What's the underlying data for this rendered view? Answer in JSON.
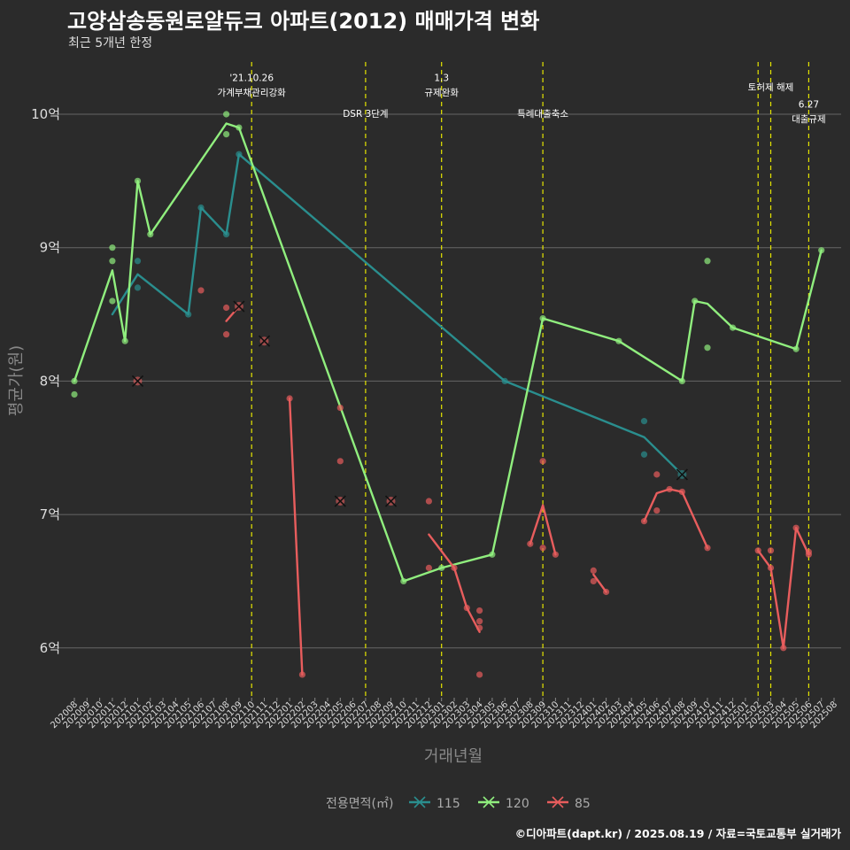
{
  "title": "고양삼송동원로얄듀크 아파트(2012) 매매가격 변화",
  "subtitle": "최근 5개년 한정",
  "caption": "©디아파트(dapt.kr) / 2025.08.19 / 자료=국토교통부 실거래가",
  "chart_data": {
    "type": "line",
    "title": "고양삼송동원로얄듀크 아파트(2012) 매매가격 변화",
    "subtitle": "최근 5개년 한정",
    "xlabel": "거래년월",
    "ylabel": "평균가(원)",
    "ylim": [
      5.7,
      10.45
    ],
    "yticks": [
      6,
      7,
      8,
      9,
      10
    ],
    "ytick_labels": [
      "6억",
      "7억",
      "8억",
      "9억",
      "10억"
    ],
    "x": [
      "202008",
      "202009",
      "202010",
      "202011",
      "202012",
      "202101",
      "202102",
      "202103",
      "202104",
      "202105",
      "202106",
      "202107",
      "202108",
      "202109",
      "202110",
      "202111",
      "202112",
      "202201",
      "202202",
      "202203",
      "202204",
      "202205",
      "202206",
      "202207",
      "202208",
      "202209",
      "202210",
      "202211",
      "202212",
      "202301",
      "202302",
      "202303",
      "202304",
      "202305",
      "202306",
      "202307",
      "202308",
      "202309",
      "202310",
      "202311",
      "202312",
      "202401",
      "202402",
      "202403",
      "202404",
      "202405",
      "202406",
      "202407",
      "202408",
      "202409",
      "202410",
      "202411",
      "202412",
      "202501",
      "202502",
      "202503",
      "202504",
      "202505",
      "202506",
      "202507",
      "202508"
    ],
    "legend_title": "전용면적(㎡)",
    "series": [
      {
        "name": "115",
        "color": "#2a8e8e",
        "line": [
          [
            3,
            8.5
          ],
          [
            5,
            8.8
          ],
          [
            9,
            8.5
          ],
          [
            10,
            9.3
          ],
          [
            12,
            9.1
          ],
          [
            13,
            9.7
          ],
          [
            34,
            8.0
          ],
          [
            45,
            7.58
          ],
          [
            48,
            7.3
          ]
        ],
        "points": [
          [
            5,
            8.9
          ],
          [
            5,
            8.7
          ],
          [
            9,
            8.5
          ],
          [
            10,
            9.3
          ],
          [
            12,
            9.1
          ],
          [
            13,
            9.7
          ],
          [
            34,
            8.0
          ],
          [
            45,
            7.7
          ],
          [
            45,
            7.45
          ]
        ],
        "crosses": [
          [
            48,
            7.3
          ]
        ]
      },
      {
        "name": "120",
        "color": "#90ee7e",
        "line": [
          [
            0,
            8.0
          ],
          [
            3,
            8.83
          ],
          [
            4,
            8.3
          ],
          [
            5,
            9.5
          ],
          [
            6,
            9.1
          ],
          [
            12,
            9.93
          ],
          [
            13,
            9.9
          ],
          [
            26,
            6.5
          ],
          [
            29,
            6.6
          ],
          [
            33,
            6.7
          ],
          [
            37,
            8.47
          ],
          [
            43,
            8.3
          ],
          [
            48,
            8.0
          ],
          [
            49,
            8.6
          ],
          [
            50,
            8.58
          ],
          [
            52,
            8.4
          ],
          [
            57,
            8.24
          ],
          [
            59,
            8.98
          ]
        ],
        "points": [
          [
            0,
            8.0
          ],
          [
            0,
            7.9
          ],
          [
            3,
            9.0
          ],
          [
            3,
            8.9
          ],
          [
            3,
            8.6
          ],
          [
            4,
            8.3
          ],
          [
            5,
            9.5
          ],
          [
            6,
            9.1
          ],
          [
            12,
            10.0
          ],
          [
            12,
            9.85
          ],
          [
            13,
            9.9
          ],
          [
            26,
            6.5
          ],
          [
            29,
            6.6
          ],
          [
            33,
            6.7
          ],
          [
            37,
            8.47
          ],
          [
            43,
            8.3
          ],
          [
            48,
            8.0
          ],
          [
            49,
            8.6
          ],
          [
            50,
            8.9
          ],
          [
            50,
            8.25
          ],
          [
            52,
            8.4
          ],
          [
            57,
            8.24
          ],
          [
            59,
            8.98
          ]
        ],
        "crosses": []
      },
      {
        "name": "85",
        "color": "#e85d5d",
        "line_segments": [
          [
            [
              12,
              8.45
            ],
            [
              13,
              8.56
            ]
          ],
          [
            [
              17,
              7.87
            ],
            [
              18,
              5.8
            ]
          ],
          [
            [
              28,
              6.85
            ],
            [
              30,
              6.6
            ],
            [
              31,
              6.3
            ],
            [
              32,
              6.12
            ]
          ],
          [
            [
              36,
              6.78
            ],
            [
              37,
              7.07
            ],
            [
              38,
              6.7
            ]
          ],
          [
            [
              41,
              6.55
            ],
            [
              42,
              6.42
            ]
          ],
          [
            [
              45,
              6.95
            ],
            [
              46,
              7.16
            ],
            [
              47,
              7.19
            ],
            [
              48,
              7.17
            ],
            [
              50,
              6.75
            ]
          ],
          [
            [
              54,
              6.73
            ],
            [
              55,
              6.6
            ],
            [
              56,
              6.0
            ],
            [
              57,
              6.9
            ],
            [
              58,
              6.7
            ]
          ]
        ],
        "points": [
          [
            10,
            8.68
          ],
          [
            12,
            8.55
          ],
          [
            12,
            8.35
          ],
          [
            17,
            7.87
          ],
          [
            18,
            5.8
          ],
          [
            21,
            7.8
          ],
          [
            21,
            7.4
          ],
          [
            28,
            7.1
          ],
          [
            28,
            6.6
          ],
          [
            30,
            6.6
          ],
          [
            31,
            6.3
          ],
          [
            32,
            6.28
          ],
          [
            32,
            6.2
          ],
          [
            32,
            6.15
          ],
          [
            32,
            5.8
          ],
          [
            36,
            6.78
          ],
          [
            37,
            7.4
          ],
          [
            37,
            6.75
          ],
          [
            38,
            6.7
          ],
          [
            41,
            6.58
          ],
          [
            41,
            6.5
          ],
          [
            42,
            6.42
          ],
          [
            45,
            6.95
          ],
          [
            46,
            7.3
          ],
          [
            46,
            7.03
          ],
          [
            47,
            7.19
          ],
          [
            48,
            7.17
          ],
          [
            50,
            6.75
          ],
          [
            54,
            6.73
          ],
          [
            55,
            6.73
          ],
          [
            55,
            6.6
          ],
          [
            56,
            6.0
          ],
          [
            57,
            6.9
          ],
          [
            58,
            6.72
          ],
          [
            58,
            6.7
          ]
        ],
        "crosses": [
          [
            5,
            8.0
          ],
          [
            13,
            8.56
          ],
          [
            15,
            8.3
          ],
          [
            21,
            7.1
          ],
          [
            25,
            7.1
          ]
        ]
      }
    ],
    "vlines": [
      {
        "x": 14.0,
        "label": [
          "'21.10.26",
          "가계부채관리강화"
        ],
        "label_y": [
          10.25,
          10.14
        ]
      },
      {
        "x": 23.0,
        "label": [
          "DSR 3단계"
        ],
        "label_y": [
          9.98
        ]
      },
      {
        "x": 29.0,
        "label": [
          "1.3",
          "규제완화"
        ],
        "label_y": [
          10.25,
          10.14
        ]
      },
      {
        "x": 37.0,
        "label": [
          "특례대출축소"
        ],
        "label_y": [
          9.98
        ]
      },
      {
        "x": 54.0,
        "label": [],
        "label_y": []
      },
      {
        "x": 55.0,
        "label": [
          "토허제 해제"
        ],
        "label_y": [
          10.18
        ]
      },
      {
        "x": 58.0,
        "label": [
          "6.27",
          "대출규제"
        ],
        "label_y": [
          10.05,
          9.94
        ]
      }
    ]
  }
}
